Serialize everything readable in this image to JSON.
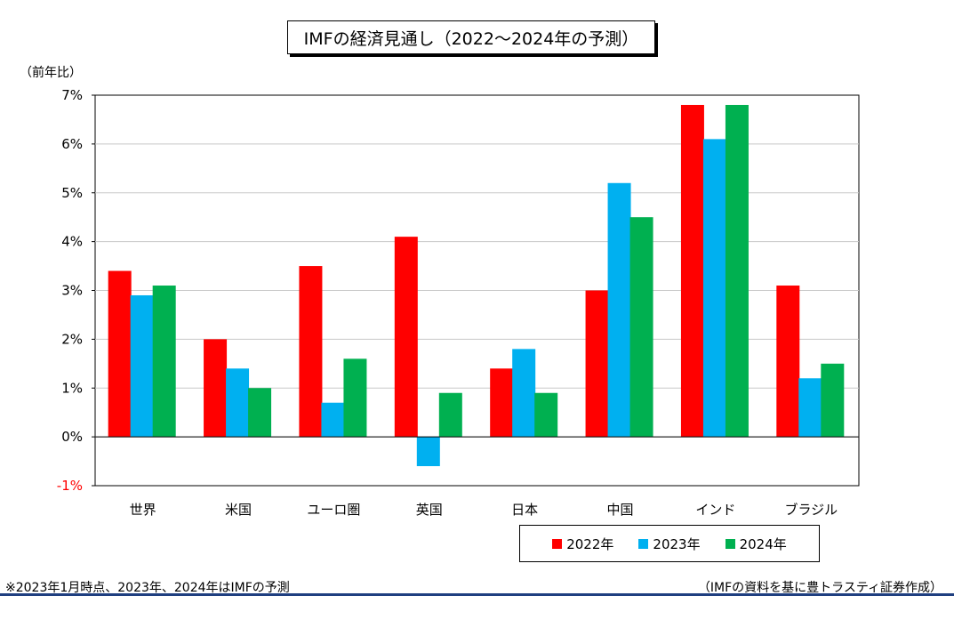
{
  "title": "IMFの経済見通し（2022～2024年の予測）",
  "unit_label": "（前年比）",
  "note": "※2023年1月時点、2023年、2024年はIMFの予測",
  "source": "（IMFの資料を基に豊トラスティ証券作成）",
  "colors": {
    "2022": "#ff0000",
    "2023": "#00b0f0",
    "2024": "#00b050",
    "negative_tick": "#ff0000",
    "rule": "#1f3f80"
  },
  "chart_data": {
    "type": "bar",
    "title": "IMFの経済見通し（2022～2024年の予測）",
    "ylabel": "（前年比）",
    "ylim": [
      -1,
      7
    ],
    "y_ticks": [
      "-1%",
      "0%",
      "1%",
      "2%",
      "3%",
      "4%",
      "5%",
      "6%",
      "7%"
    ],
    "grid": true,
    "legend_position": "bottom-right",
    "categories": [
      "世界",
      "米国",
      "ユーロ圏",
      "英国",
      "日本",
      "中国",
      "インド",
      "ブラジル"
    ],
    "series": [
      {
        "name": "2022年",
        "values": [
          3.4,
          2.0,
          3.5,
          4.1,
          1.4,
          3.0,
          6.8,
          3.1
        ]
      },
      {
        "name": "2023年",
        "values": [
          2.9,
          1.4,
          0.7,
          -0.6,
          1.8,
          5.2,
          6.1,
          1.2
        ]
      },
      {
        "name": "2024年",
        "values": [
          3.1,
          1.0,
          1.6,
          0.9,
          0.9,
          4.5,
          6.8,
          1.5
        ]
      }
    ]
  }
}
